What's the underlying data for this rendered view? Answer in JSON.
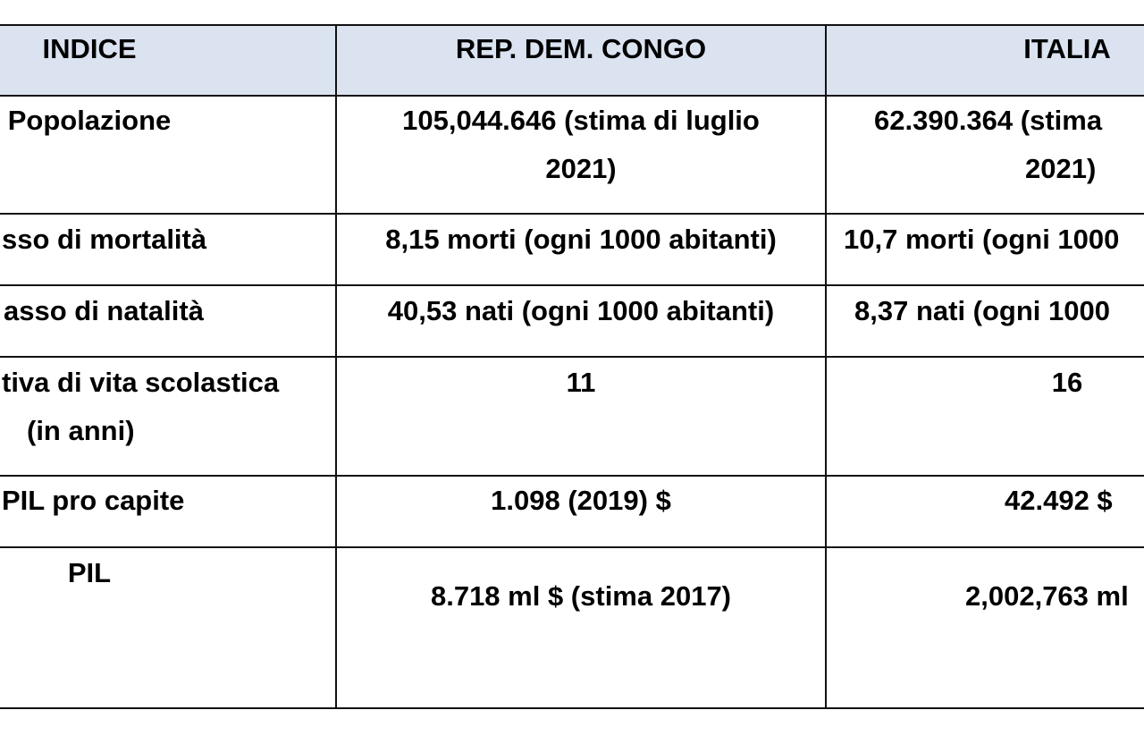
{
  "headers": {
    "indice": "INDICE",
    "congo": "REP. DEM. CONGO",
    "italia": "ITALIA"
  },
  "rows": [
    {
      "indice": [
        "Popolazione"
      ],
      "congo": [
        "105,044.646 (stima di luglio",
        "2021)"
      ],
      "italia": [
        "62.390.364 (stima",
        "2021)"
      ]
    },
    {
      "indice": [
        "sso di mortalità"
      ],
      "congo": [
        "8,15 morti (ogni 1000 abitanti)"
      ],
      "italia": [
        "10,7 morti (ogni 1000"
      ]
    },
    {
      "indice": [
        "asso di natalità"
      ],
      "congo": [
        "40,53 nati (ogni 1000 abitanti)"
      ],
      "italia": [
        "8,37 nati (ogni 1000"
      ]
    },
    {
      "indice": [
        "tiva di vita scolastica",
        "(in anni)"
      ],
      "congo": [
        "11"
      ],
      "italia": [
        "16"
      ]
    },
    {
      "indice": [
        "PIL pro capite"
      ],
      "congo": [
        "1.098 (2019) $"
      ],
      "italia": [
        "42.492 $"
      ]
    },
    {
      "indice": [
        "PIL"
      ],
      "congo": [
        "8.718 ml $ (stima 2017)"
      ],
      "italia": [
        "2,002,763 ml"
      ]
    }
  ]
}
